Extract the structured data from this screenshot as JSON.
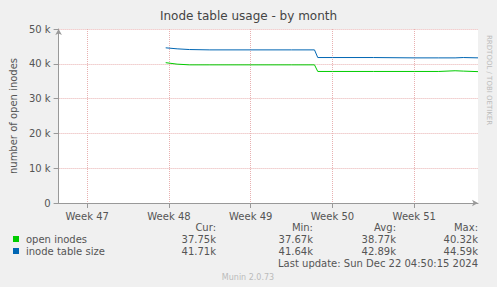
{
  "chart_data": {
    "type": "line",
    "title": "Inode table usage - by month",
    "y_label": "number of open inodes",
    "x": [
      47.96,
      48.1,
      48.25,
      48.5,
      49.0,
      49.5,
      49.78,
      49.82,
      50.0,
      50.5,
      51.0,
      51.3,
      51.5,
      51.6,
      51.78
    ],
    "series": [
      {
        "name": "open inodes",
        "color": "#00cc00",
        "values": [
          40320,
          39900,
          39700,
          39700,
          39700,
          39700,
          39700,
          37800,
          37800,
          37800,
          37800,
          37800,
          38000,
          37900,
          37750
        ],
        "stats": [
          "37.75k",
          "37.67k",
          "38.77k",
          "40.32k"
        ]
      },
      {
        "name": "inode table size",
        "color": "#0066b3",
        "values": [
          44590,
          44300,
          44100,
          44000,
          44000,
          44000,
          44000,
          41800,
          41800,
          41800,
          41700,
          41700,
          41700,
          41800,
          41710
        ],
        "stats": [
          "41.71k",
          "41.64k",
          "42.89k",
          "44.59k"
        ]
      }
    ],
    "stat_labels": [
      "Cur:",
      "Min:",
      "Avg:",
      "Max:"
    ],
    "xlim": [
      46.65,
      51.78
    ],
    "xticks": [
      {
        "value": 47,
        "label": "Week 47"
      },
      {
        "value": 48,
        "label": "Week 48"
      },
      {
        "value": 49,
        "label": "Week 49"
      },
      {
        "value": 50,
        "label": "Week 50"
      },
      {
        "value": 51,
        "label": "Week 51"
      }
    ],
    "ylim": [
      0,
      50000
    ],
    "yticks": [
      0,
      {
        "value": 10000,
        "label": "10 k"
      },
      {
        "value": 20000,
        "label": "20 k"
      },
      {
        "value": 30000,
        "label": "30 k"
      },
      {
        "value": 40000,
        "label": "40 k"
      },
      {
        "value": 50000,
        "label": "50 k"
      }
    ],
    "grid": true,
    "footer": "Last update: Sun Dec 22 04:50:15 2024",
    "credit": "Munin 2.0.73",
    "watermark": "RRDTOOL / TOBI OETIKER"
  }
}
